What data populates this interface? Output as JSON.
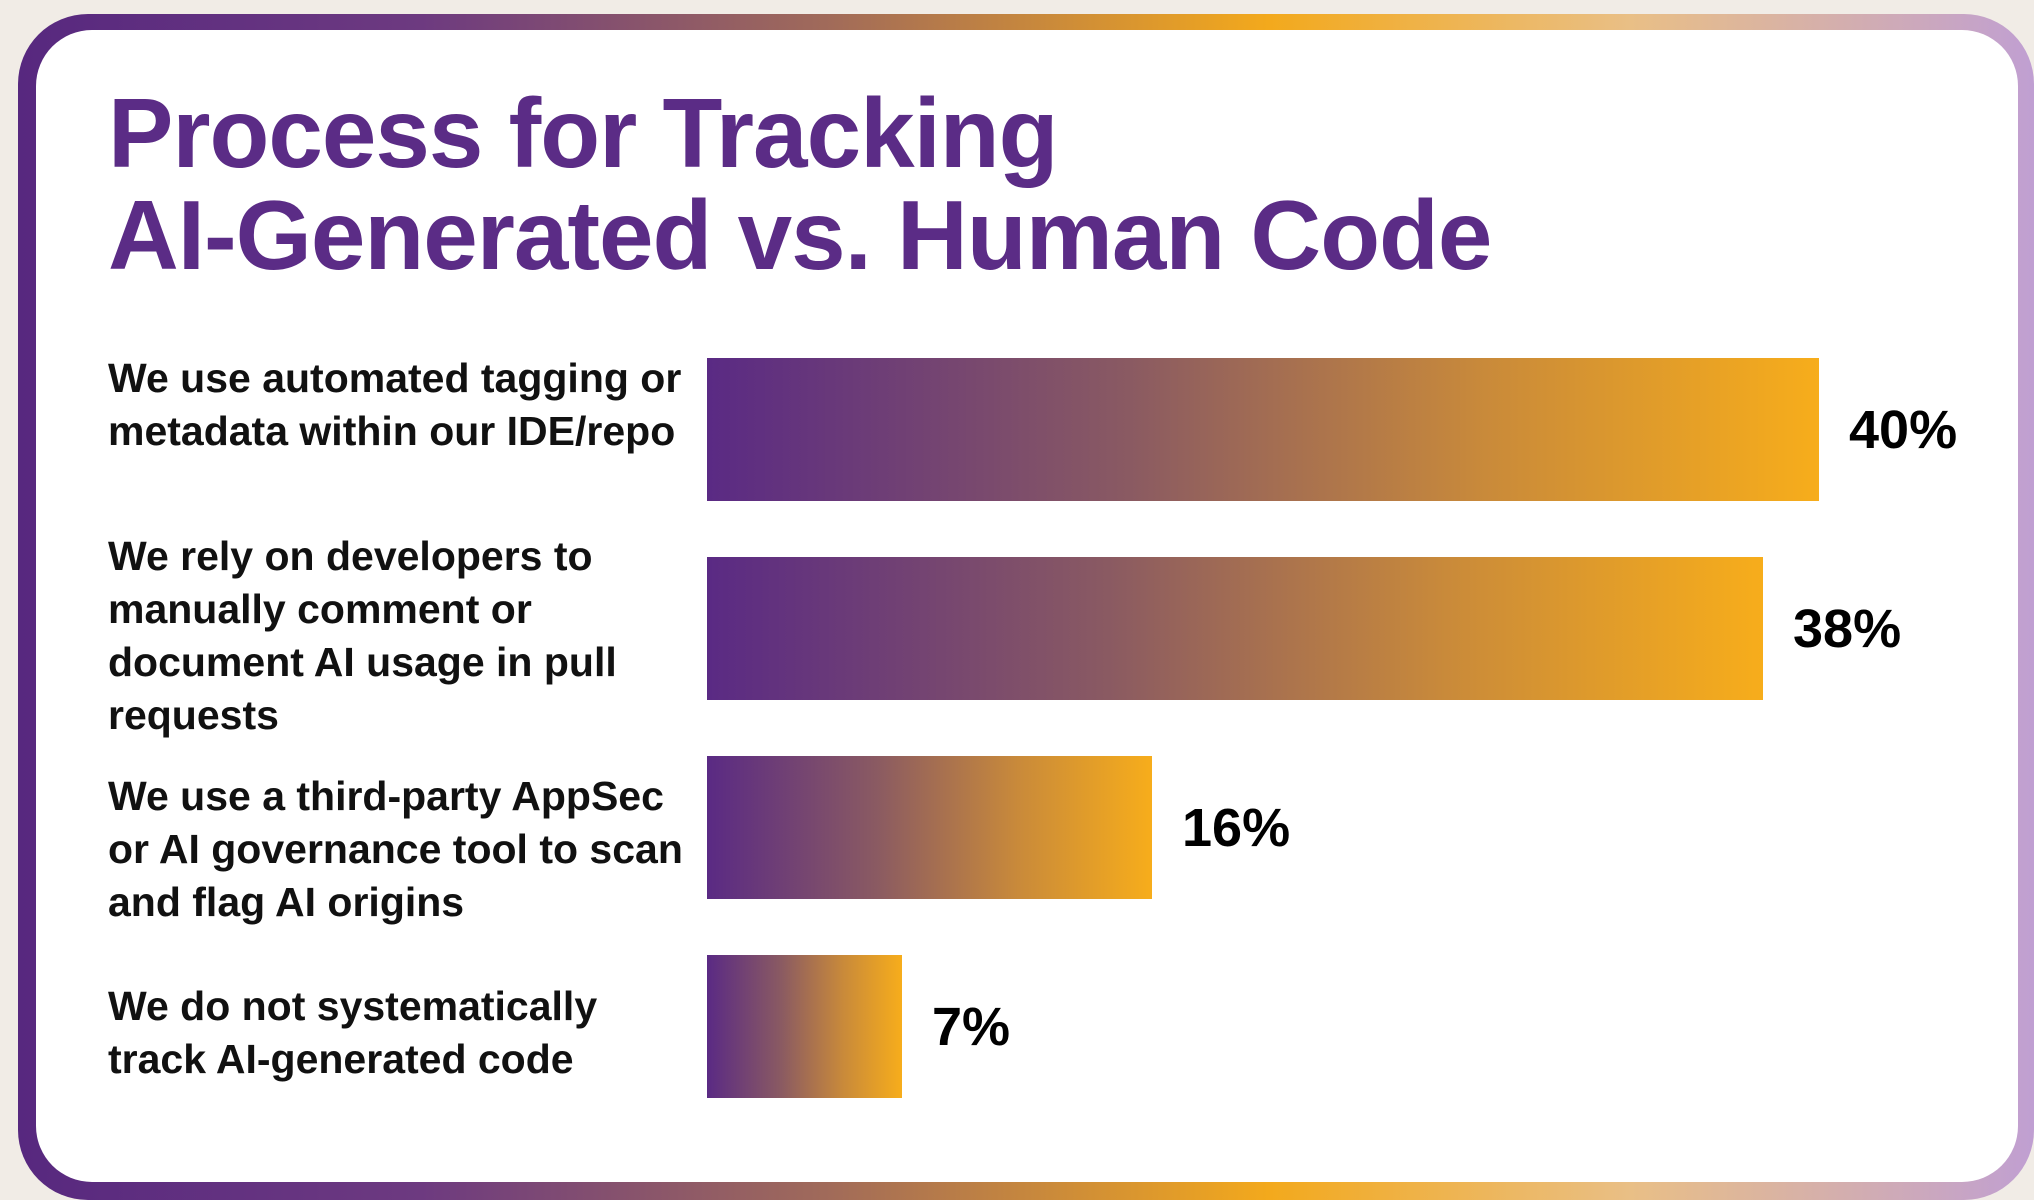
{
  "chart_data": {
    "type": "bar",
    "orientation": "horizontal",
    "title_lines": [
      "Process for Tracking",
      "AI-Generated vs. Human Code"
    ],
    "categories": [
      "We use automated tagging or metadata within our IDE/repo",
      "We rely on developers to manually comment or document AI usage in pull requests",
      "We use a third-party AppSec or AI governance tool to scan and flag AI origins",
      "We do not systematically track AI-generated code"
    ],
    "values": [
      40,
      38,
      16,
      7
    ],
    "value_labels": [
      "40%",
      "38%",
      "16%",
      "7%"
    ],
    "xlim": [
      0,
      40
    ],
    "grid": false,
    "legend": "none",
    "colors": {
      "bar_start": "#5a2a84",
      "bar_end": "#f7ad1b",
      "title": "#5b2c86",
      "text": "#111111"
    }
  }
}
